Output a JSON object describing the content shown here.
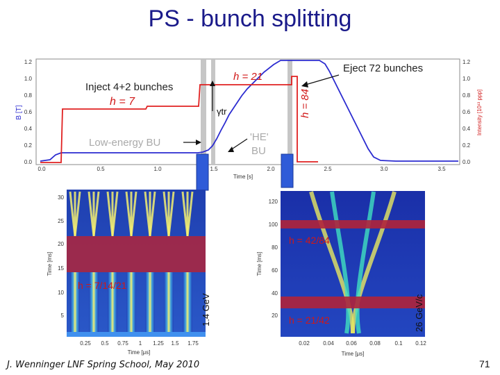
{
  "slide": {
    "title": "PS - bunch splitting",
    "footer": "J. Wenninger LNF Spring School, May 2010",
    "page_number": "71"
  },
  "top_plot": {
    "ylabel_left": "B [T]",
    "ylabel_right": "Intensity [10¹³ ppp]",
    "xlabel": "Time [s]",
    "y_ticks_left": [
      "0.0",
      "0.2",
      "0.4",
      "0.6",
      "0.8",
      "1.0",
      "1.2"
    ],
    "y_ticks_right": [
      "0.0",
      "0.2",
      "0.4",
      "0.6",
      "0.8",
      "1.0",
      "1.2"
    ],
    "x_ticks": [
      "0.0",
      "0.5",
      "1.0",
      "1.5",
      "2.0",
      "2.5",
      "3.0",
      "3.5"
    ],
    "annotations": {
      "inject": "Inject 4+2 bunches",
      "h7": "h = 7",
      "h21": "h = 21",
      "gamma_tr": "γtr",
      "h84": "h = 84",
      "eject": "Eject 72 bunches",
      "low_energy_bu": "Low-energy BU",
      "he_bu_line1": "'HE'",
      "he_bu_line2": "BU"
    },
    "colors": {
      "b_field": "#2b2bd0",
      "intensity": "#e02020",
      "text_red": "#d01818"
    }
  },
  "left_plot": {
    "ylabel": "Time [ms]",
    "xlabel": "Time [μs]",
    "y_ticks": [
      "5",
      "10",
      "15",
      "20",
      "25",
      "30"
    ],
    "x_ticks": [
      "0.25",
      "0.5",
      "0.75",
      "1",
      "1.25",
      "1.5",
      "1.75"
    ],
    "annotation": "h = 7/14/21",
    "energy": "1.4 GeV"
  },
  "right_plot": {
    "ylabel": "Time [ms]",
    "xlabel": "Time [μs]",
    "y_ticks": [
      "20",
      "40",
      "60",
      "80",
      "100",
      "120"
    ],
    "x_ticks": [
      "0.02",
      "0.04",
      "0.06",
      "0.08",
      "0.1",
      "0.12"
    ],
    "annotation_top": "h = 42/84",
    "annotation_bottom": "h = 21/42",
    "energy": "26 GeV/c"
  }
}
